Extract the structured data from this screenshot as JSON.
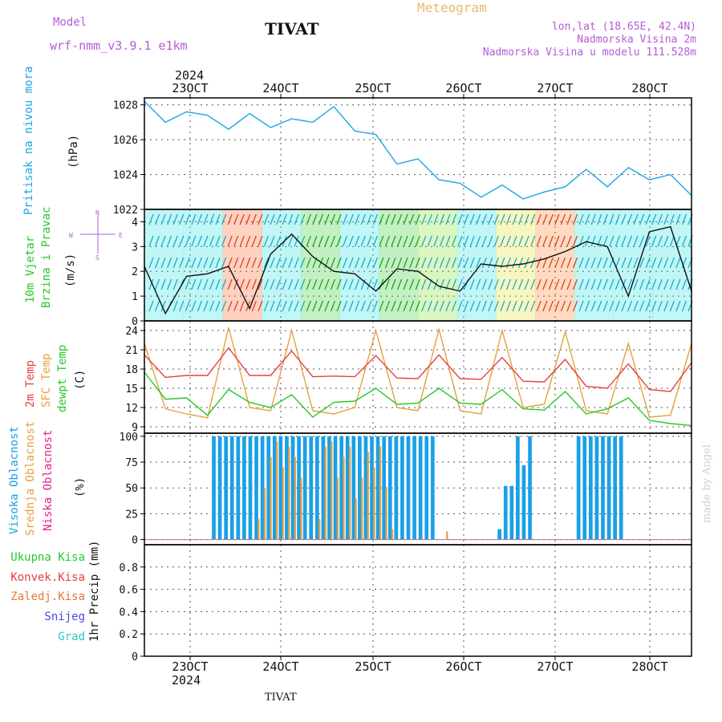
{
  "header": {
    "model_label": "Model",
    "model_name": "wrf-nmm_v3.9.1 e1km",
    "station": "TIVAT",
    "meteogram": "Meteogram",
    "coords": "lon,lat (18.65E, 42.4N)",
    "altitude": "Nadmorska Visina 2m",
    "model_altitude": "Nadmorska Visina u modelu 111.528m"
  },
  "footer": {
    "station": "TIVAT",
    "watermark": "made by Angel"
  },
  "colors": {
    "pressure": "#1aa6e6",
    "temp": "#e64040",
    "sfc": "#e6a040",
    "dew": "#28c828",
    "cloud": "#1aa0e6",
    "mid": "#e6a040"
  },
  "chart_data": [
    {
      "type": "line",
      "title": "",
      "top_dates": {
        "year": "2024",
        "ticks": [
          "23OCT",
          "24OCT",
          "25OCT",
          "26OCT",
          "27OCT",
          "28OCT"
        ]
      },
      "ylabel": [
        "Pritisak na nivou mora",
        "(hPa)"
      ],
      "ylim": [
        1022,
        1028.4
      ],
      "yticks": [
        1022,
        1024,
        1026,
        1028
      ],
      "series": [
        {
          "values": [
            1028.2,
            1027.0,
            1027.6,
            1027.4,
            1026.6,
            1027.5,
            1026.7,
            1027.2,
            1027.0,
            1027.9,
            1026.5,
            1026.3,
            1024.6,
            1024.9,
            1023.7,
            1023.5,
            1022.7,
            1023.4,
            1022.6,
            1023.0,
            1023.3,
            1024.3,
            1023.3,
            1024.4,
            1023.7,
            1024.0,
            1022.8
          ]
        }
      ]
    },
    {
      "type": "line",
      "ylabel": [
        "10m Vjetar",
        "Brzina i Pravac",
        "(m/s)"
      ],
      "compass": "N\n^\nW <- | -> E\nv\nS",
      "ylim": [
        0,
        4.5
      ],
      "yticks": [
        0,
        1,
        2,
        3,
        4
      ],
      "series": [
        {
          "values": [
            2.2,
            0.3,
            1.8,
            1.9,
            2.2,
            0.5,
            2.7,
            3.5,
            2.6,
            2.0,
            1.9,
            1.2,
            2.1,
            2.0,
            1.4,
            1.2,
            2.3,
            2.2,
            2.3,
            2.5,
            2.8,
            3.2,
            3.0,
            1.0,
            3.6,
            3.8,
            1.2
          ]
        }
      ]
    },
    {
      "type": "line",
      "ylabel": [
        "2m Temp",
        "SFC Temp",
        "dewpt Temp",
        "(C)"
      ],
      "ylim": [
        8,
        25.5
      ],
      "yticks": [
        9,
        12,
        15,
        18,
        21,
        24
      ],
      "series": [
        {
          "name": "2m Temp",
          "values": [
            20.2,
            16.7,
            17.0,
            17.0,
            21.3,
            17.0,
            17.0,
            20.8,
            16.8,
            16.9,
            16.8,
            20.1,
            16.6,
            16.5,
            20.2,
            16.5,
            16.4,
            19.8,
            16.1,
            16.0,
            19.5,
            15.3,
            15.0,
            18.8,
            14.8,
            14.5,
            19.0
          ]
        },
        {
          "name": "SFC Temp",
          "values": [
            22.0,
            11.8,
            11.0,
            10.4,
            24.5,
            12.0,
            11.5,
            24.0,
            11.5,
            11.0,
            12.0,
            24.0,
            12.0,
            11.5,
            24.2,
            11.5,
            11.0,
            24.0,
            12.0,
            12.5,
            23.8,
            11.5,
            11.0,
            22.0,
            10.5,
            10.8,
            22.0
          ]
        },
        {
          "name": "dewpt Temp",
          "values": [
            17.5,
            13.3,
            13.5,
            10.8,
            14.8,
            12.8,
            12.0,
            14.0,
            10.5,
            12.8,
            13.0,
            15.0,
            12.5,
            12.7,
            15.0,
            12.7,
            12.5,
            14.8,
            11.8,
            11.6,
            14.5,
            11.0,
            11.8,
            13.5,
            10.0,
            9.5,
            9.2
          ]
        }
      ]
    },
    {
      "type": "bar",
      "ylabel": [
        "Visoka Oblacnost",
        "Srednja Oblacnost",
        "Niska Oblacnost",
        "(%)"
      ],
      "ylim": [
        -5,
        103
      ],
      "yticks": [
        0,
        25,
        50,
        75,
        100
      ],
      "series": [
        {
          "name": "Visoka Oblacnost",
          "values": [
            0,
            0,
            0,
            0,
            0,
            0,
            0,
            0,
            0,
            0,
            0,
            100,
            100,
            100,
            100,
            100,
            100,
            100,
            100,
            100,
            100,
            100,
            100,
            100,
            100,
            100,
            100,
            100,
            100,
            100,
            100,
            100,
            100,
            100,
            100,
            100,
            100,
            100,
            100,
            100,
            100,
            100,
            100,
            100,
            100,
            100,
            100,
            100,
            0,
            0,
            0,
            0,
            0,
            0,
            0,
            0,
            0,
            0,
            10,
            52,
            52,
            100,
            72,
            100,
            0,
            0,
            0,
            0,
            0,
            0,
            0,
            100,
            100,
            100,
            100,
            100,
            100,
            100,
            100,
            0,
            0,
            0,
            0,
            0,
            0,
            0,
            0,
            0,
            0,
            0
          ]
        },
        {
          "name": "Srednja Oblacnost",
          "values": [
            0,
            0,
            0,
            0,
            0,
            0,
            0,
            0,
            0,
            0,
            0,
            0,
            0,
            0,
            0,
            0,
            0,
            0,
            20,
            50,
            80,
            95,
            70,
            90,
            80,
            60,
            0,
            0,
            20,
            90,
            95,
            60,
            80,
            90,
            40,
            60,
            85,
            70,
            90,
            50,
            10,
            0,
            0,
            0,
            0,
            0,
            0,
            0,
            0,
            8,
            0,
            0,
            0,
            0,
            0,
            0,
            0,
            0,
            0,
            0,
            0,
            0,
            0,
            0,
            0,
            0,
            0,
            0,
            0,
            0,
            0,
            0,
            0,
            0,
            0,
            0,
            0,
            0,
            0,
            0,
            0,
            0,
            0,
            0,
            0,
            0,
            0,
            0,
            0,
            0
          ]
        }
      ]
    },
    {
      "type": "line",
      "ylabel": [
        "Ukupna Kisa",
        "Konvek.Kisa",
        "Zaledj.Kisa",
        "Snijeg",
        "Grad",
        "1hr Precip (mm)"
      ],
      "ylim": [
        0,
        1.0
      ],
      "yticks": [
        0,
        0.2,
        0.4,
        0.6,
        0.8
      ],
      "ytick_labels": [
        "0",
        "0.2",
        "0.4",
        "0.6",
        "0.8"
      ],
      "bottom_dates": {
        "ticks": [
          "23OCT",
          "24OCT",
          "25OCT",
          "26OCT",
          "27OCT",
          "28OCT"
        ],
        "year": "2024"
      }
    }
  ]
}
